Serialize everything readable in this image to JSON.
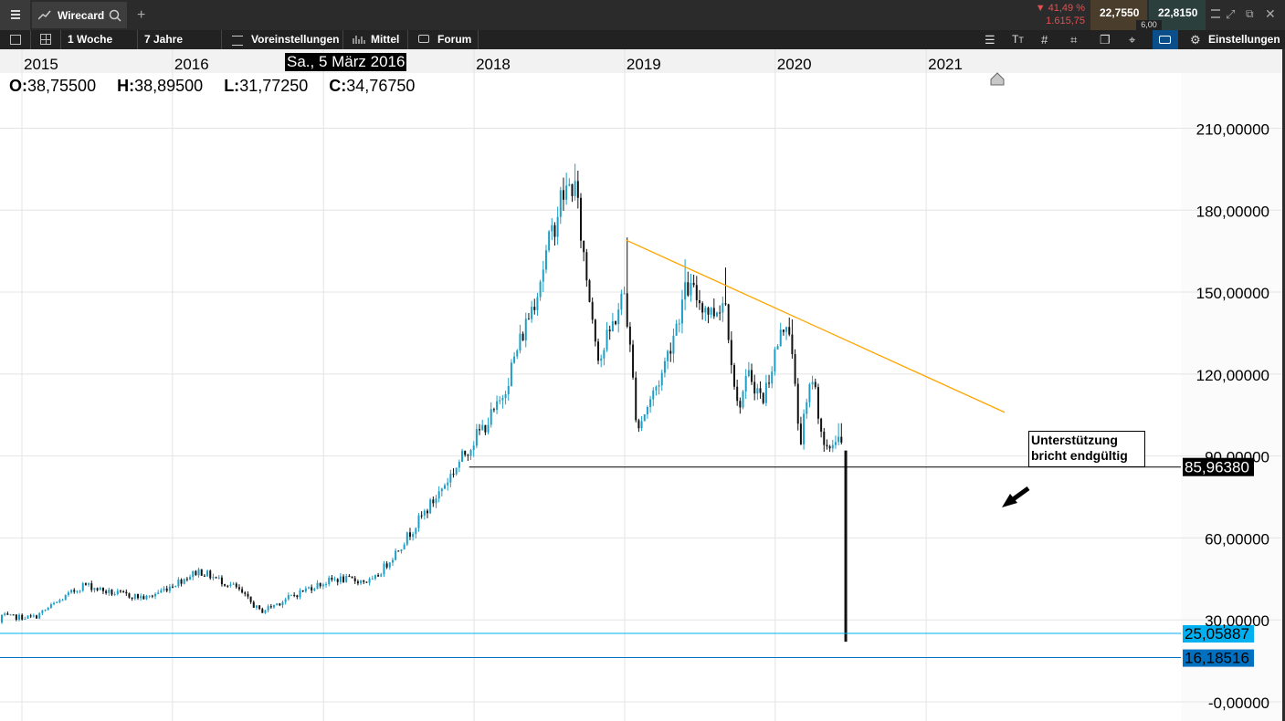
{
  "topbar": {
    "menu_icon": "hamburger-icon",
    "instrument": "Wirecard",
    "change_pct": "▼ 41,49 %",
    "change_abs": "1.615,75",
    "bid": "22,7550",
    "ask": "22,8150",
    "spread": "6,00"
  },
  "toolbar": {
    "interval": "1 Woche",
    "range": "7 Jahre",
    "presets": "Voreinstellungen",
    "indicator": "Mittel",
    "forum": "Forum",
    "settings": "Einstellungen"
  },
  "ohlc": {
    "o_label": "O:",
    "o": "38,75500",
    "h_label": "H:",
    "h": "38,89500",
    "l_label": "L:",
    "l": "31,77250",
    "c_label": "C:",
    "c": "34,76750"
  },
  "crosshair_date": "Sa., 5 März 2016",
  "chart_data": {
    "type": "candlestick",
    "years": [
      "2015",
      "2016",
      "2017",
      "2018",
      "2019",
      "2020",
      "2021"
    ],
    "ytick_labels": [
      "-0,00000",
      "30,00000",
      "60,00000",
      "90,00000",
      "120,00000",
      "150,00000",
      "180,00000",
      "210,00000"
    ],
    "ylim": [
      -2,
      216
    ],
    "grid": true,
    "price_path": [
      [
        "2013-12-01",
        29
      ],
      [
        "2014-04-01",
        36
      ],
      [
        "2014-06-01",
        31
      ],
      [
        "2014-09-01",
        34
      ],
      [
        "2014-12-01",
        31
      ],
      [
        "2015-02-01",
        31
      ],
      [
        "2015-06-01",
        43
      ],
      [
        "2015-08-01",
        40
      ],
      [
        "2015-11-01",
        38
      ],
      [
        "2016-03-05",
        48
      ],
      [
        "2016-06-01",
        42
      ],
      [
        "2016-08-01",
        33
      ],
      [
        "2016-12-01",
        42
      ],
      [
        "2017-02-01",
        45
      ],
      [
        "2017-05-01",
        44
      ],
      [
        "2017-07-01",
        56
      ],
      [
        "2017-10-01",
        75
      ],
      [
        "2018-01-01",
        96
      ],
      [
        "2018-03-01",
        108
      ],
      [
        "2018-06-01",
        150
      ],
      [
        "2018-08-01",
        185
      ],
      [
        "2018-09-01",
        190
      ],
      [
        "2018-10-01",
        155
      ],
      [
        "2018-11-01",
        125
      ],
      [
        "2019-01-01",
        150
      ],
      [
        "2019-02-01",
        100
      ],
      [
        "2019-04-01",
        120
      ],
      [
        "2019-06-01",
        152
      ],
      [
        "2019-08-01",
        142
      ],
      [
        "2019-09-01",
        148
      ],
      [
        "2019-10-01",
        108
      ],
      [
        "2019-11-01",
        120
      ],
      [
        "2019-12-01",
        110
      ],
      [
        "2020-01-01",
        128
      ],
      [
        "2020-02-01",
        142
      ],
      [
        "2020-03-01",
        95
      ],
      [
        "2020-04-01",
        120
      ],
      [
        "2020-05-01",
        90
      ],
      [
        "2020-05-31",
        98
      ],
      [
        "2020-06-13",
        92
      ],
      [
        "2020-06-20",
        22
      ]
    ],
    "spike_highs": [
      [
        "2018-09-01",
        197
      ],
      [
        "2019-01-05",
        170
      ],
      [
        "2019-05-25",
        162
      ],
      [
        "2019-09-05",
        159
      ],
      [
        "2020-02-12",
        140
      ],
      [
        "2020-06-06",
        102
      ]
    ],
    "trendline": {
      "start": [
        "2019-01-05",
        169
      ],
      "end": [
        "2021-07-10",
        106
      ],
      "color": "#ffa500"
    },
    "support_line": {
      "start": [
        "2017-12-20",
        85.9638
      ],
      "label": "85,96380"
    },
    "hlines": [
      {
        "value": 25.05887,
        "label": "25,05887",
        "color": "#00b0f0"
      },
      {
        "value": 16.18516,
        "label": "16,18516",
        "color": "#0070c0"
      }
    ],
    "annotation": {
      "lines": [
        "Unterstützung",
        "bricht endgültig"
      ]
    },
    "colors": {
      "up": "#1f9fc7",
      "down": "#111111"
    },
    "marker_icon": "house-icon"
  }
}
